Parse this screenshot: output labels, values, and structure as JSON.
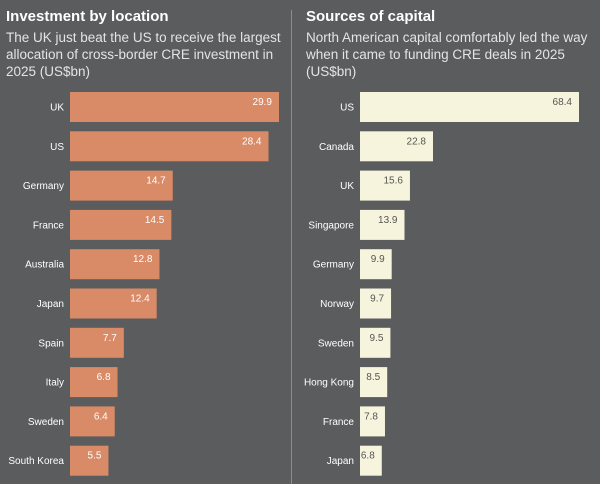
{
  "colors": {
    "background": "#5a5c5e",
    "left_bar": "#d98a66",
    "right_bar": "#f7f4dd",
    "left_value_text": "#ffffff",
    "right_value_text": "#555555"
  },
  "chart_data": [
    {
      "type": "bar",
      "orientation": "horizontal",
      "title": "Investment by location",
      "subtitle": "The UK just beat the US to receive the largest allocation of cross-border CRE investment in 2025 (US$bn)",
      "categories": [
        "UK",
        "US",
        "Germany",
        "France",
        "Australia",
        "Japan",
        "Spain",
        "Italy",
        "Sweden",
        "South Korea"
      ],
      "values": [
        29.9,
        28.4,
        14.7,
        14.5,
        12.8,
        12.4,
        7.7,
        6.8,
        6.4,
        5.5
      ],
      "value_labels": [
        "29.9",
        "28.4",
        "14.7",
        "14.5",
        "12.8",
        "12.4",
        "7.7",
        "6.8",
        "6.4",
        "5.5"
      ],
      "xlim": [
        0,
        29.9
      ],
      "grid": false,
      "legend": "none"
    },
    {
      "type": "bar",
      "orientation": "horizontal",
      "title": "Sources of capital",
      "subtitle": "North American capital comfortably led the way when it came to funding CRE deals in 2025 (US$bn)",
      "categories": [
        "US",
        "Canada",
        "UK",
        "Singapore",
        "Germany",
        "Norway",
        "Sweden",
        "Hong Kong",
        "France",
        "Japan"
      ],
      "values": [
        68.4,
        22.8,
        15.6,
        13.9,
        9.9,
        9.7,
        9.5,
        8.5,
        7.8,
        6.8
      ],
      "value_labels": [
        "68.4",
        "22.8",
        "15.6",
        "13.9",
        "9.9",
        "9.7",
        "9.5",
        "8.5",
        "7.8",
        "6.8"
      ],
      "xlim": [
        0,
        68.4
      ],
      "grid": false,
      "legend": "none"
    }
  ]
}
